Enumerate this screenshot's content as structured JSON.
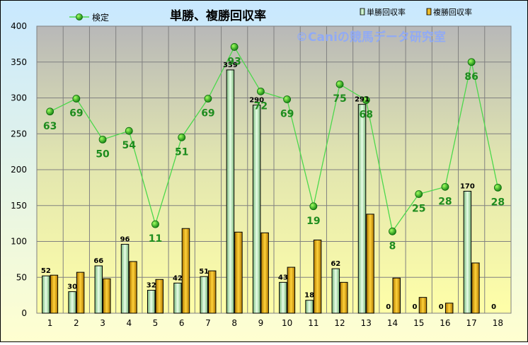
{
  "chart_data": {
    "type": "bar",
    "title": "単勝、複勝回収率",
    "watermark": "©Caniの競馬データ研究室",
    "categories": [
      "1",
      "2",
      "3",
      "4",
      "5",
      "6",
      "7",
      "8",
      "9",
      "10",
      "11",
      "12",
      "13",
      "14",
      "15",
      "16",
      "17",
      "18"
    ],
    "ylim": [
      0,
      400
    ],
    "yticks": [
      0,
      50,
      100,
      150,
      200,
      250,
      300,
      350,
      400
    ],
    "grid": true,
    "legend_position": "top",
    "series": [
      {
        "name": "単勝回収率",
        "kind": "bar",
        "color": "#c8f0c8",
        "values": [
          52,
          30,
          66,
          96,
          32,
          42,
          51,
          339,
          290,
          43,
          18,
          62,
          291,
          0,
          0,
          0,
          170,
          0
        ],
        "labels": [
          "52",
          "30",
          "66",
          "96",
          "32",
          "42",
          "51",
          "339",
          "290",
          "43",
          "18",
          "62",
          "291",
          "0",
          "0",
          "0",
          "170",
          "0"
        ]
      },
      {
        "name": "複勝回収率",
        "kind": "bar",
        "color": "#e8b000",
        "values": [
          53,
          57,
          48,
          72,
          47,
          118,
          59,
          113,
          112,
          64,
          102,
          43,
          138,
          49,
          22,
          14,
          70,
          0
        ]
      },
      {
        "name": "検定",
        "kind": "line",
        "color": "#20b020",
        "plot_values": [
          281,
          299,
          242,
          254,
          124,
          245,
          299,
          371,
          309,
          298,
          149,
          319,
          297,
          114,
          166,
          176,
          350,
          175
        ],
        "labels": [
          "63",
          "69",
          "50",
          "54",
          "11",
          "51",
          "69",
          "93",
          "72",
          "69",
          "19",
          "75",
          "68",
          "8",
          "25",
          "28",
          "86",
          "28"
        ]
      }
    ]
  }
}
